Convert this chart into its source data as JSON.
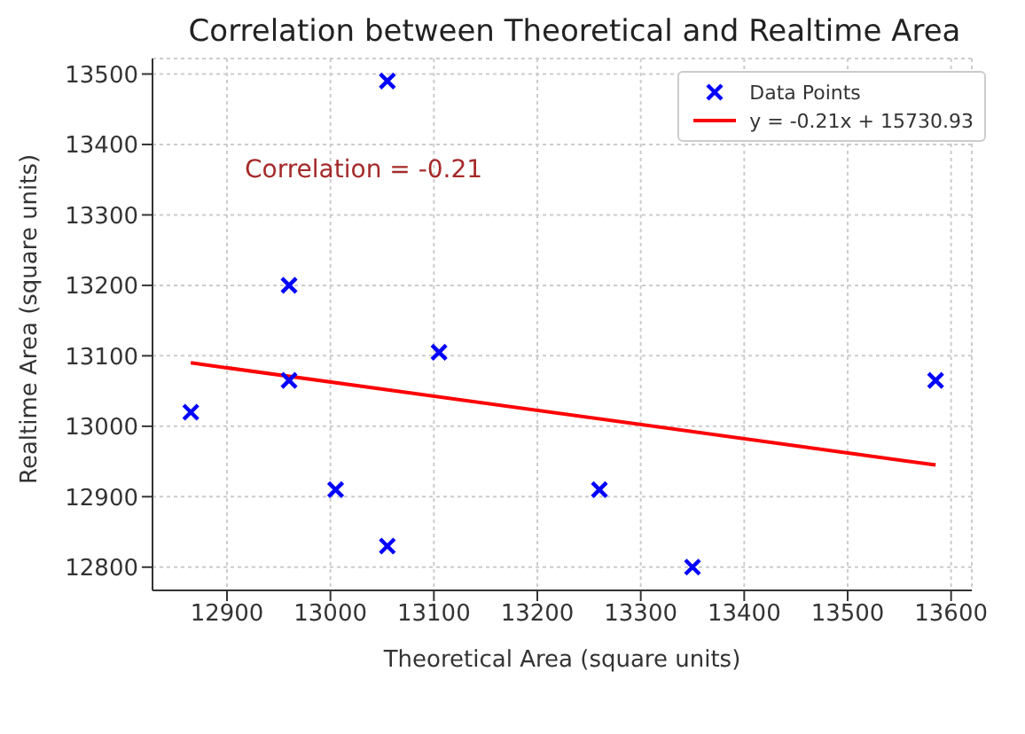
{
  "chart_data": {
    "type": "scatter",
    "title": "Correlation between Theoretical and Realtime Area",
    "xlabel": "Theoretical Area (square units)",
    "ylabel": "Realtime Area (square units)",
    "series": [
      {
        "name": "Data Points",
        "color": "#0000ff",
        "marker": "cross",
        "x": [
          12865,
          12960,
          12960,
          13005,
          13055,
          13055,
          13105,
          13260,
          13350,
          13585
        ],
        "values": [
          13020,
          13200,
          13065,
          12910,
          13490,
          12830,
          13105,
          12910,
          12800,
          13065
        ]
      },
      {
        "name": "y = -0.21x + 15730.93",
        "type": "line",
        "color": "#ff0000",
        "x": [
          12865,
          13585
        ],
        "values": [
          13090,
          12945
        ]
      }
    ],
    "annotations": [
      "Correlation = -0.21"
    ],
    "xlim": [
      12828,
      13620
    ],
    "xticks": [
      12900,
      13000,
      13100,
      13200,
      13300,
      13400,
      13500,
      13600
    ],
    "ylim": [
      12767,
      13522
    ],
    "yticks": [
      12800,
      12900,
      13000,
      13100,
      13200,
      13300,
      13400,
      13500
    ],
    "grid": true,
    "legend": "top right"
  }
}
